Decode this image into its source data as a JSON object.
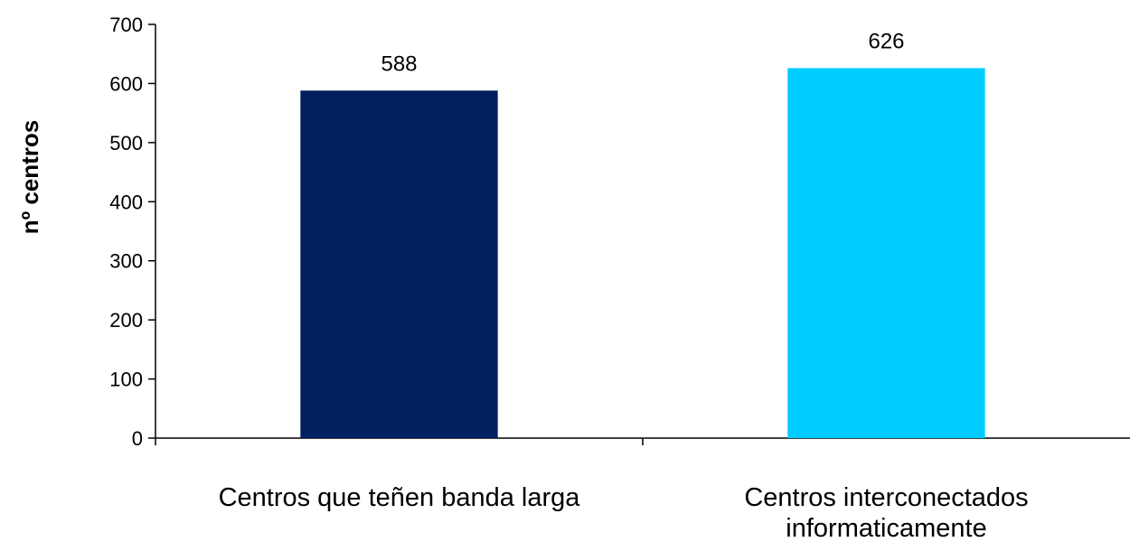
{
  "chart_data": {
    "type": "bar",
    "title": "",
    "xlabel": "",
    "ylabel": "nº centros",
    "ylim": [
      0,
      700
    ],
    "yticks": [
      0,
      100,
      200,
      300,
      400,
      500,
      600,
      700
    ],
    "categories": [
      [
        "Centros que teñen banda larga"
      ],
      [
        "Centros interconectados",
        "informaticamente"
      ]
    ],
    "values": [
      588,
      626
    ],
    "bar_colors": [
      "#002060",
      "#00CCFF"
    ],
    "data_labels": [
      "588",
      "626"
    ],
    "grid": false,
    "legend": "none"
  }
}
